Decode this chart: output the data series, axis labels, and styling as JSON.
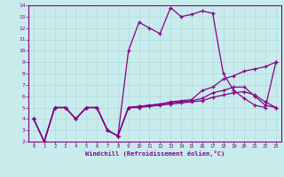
{
  "xlabel": "Windchill (Refroidissement éolien,°C)",
  "bg_color": "#c8ecec",
  "grid_color": "#b0d8d8",
  "line_color": "#880088",
  "xlim": [
    -0.5,
    23.5
  ],
  "ylim": [
    2,
    14
  ],
  "xticks": [
    0,
    1,
    2,
    3,
    4,
    5,
    6,
    7,
    8,
    9,
    10,
    11,
    12,
    13,
    14,
    15,
    16,
    17,
    18,
    19,
    20,
    21,
    22,
    23
  ],
  "yticks": [
    2,
    3,
    4,
    5,
    6,
    7,
    8,
    9,
    10,
    11,
    12,
    13,
    14
  ],
  "line1_x": [
    0,
    1,
    2,
    3,
    4,
    5,
    6,
    7,
    8,
    9,
    10,
    11,
    12,
    13,
    14,
    15,
    16,
    17,
    18,
    19,
    20,
    21,
    22,
    23
  ],
  "line1_y": [
    4.0,
    2.0,
    5.0,
    5.0,
    4.0,
    5.0,
    5.0,
    3.0,
    2.5,
    10.0,
    12.5,
    12.0,
    11.5,
    13.8,
    13.0,
    13.2,
    13.5,
    13.3,
    8.0,
    6.5,
    5.8,
    5.2,
    5.0,
    9.0
  ],
  "line2_x": [
    0,
    1,
    2,
    3,
    4,
    5,
    6,
    7,
    8,
    9,
    10,
    11,
    12,
    13,
    14,
    15,
    16,
    17,
    18,
    19,
    20,
    21,
    22,
    23
  ],
  "line2_y": [
    4.0,
    2.0,
    5.0,
    5.0,
    4.0,
    5.0,
    5.0,
    3.0,
    2.5,
    5.0,
    5.1,
    5.2,
    5.3,
    5.5,
    5.6,
    5.7,
    6.5,
    6.8,
    7.5,
    7.8,
    8.2,
    8.4,
    8.6,
    9.0
  ],
  "line3_x": [
    0,
    1,
    2,
    3,
    4,
    5,
    6,
    7,
    8,
    9,
    10,
    11,
    12,
    13,
    14,
    15,
    16,
    17,
    18,
    19,
    20,
    21,
    22,
    23
  ],
  "line3_y": [
    4.0,
    2.0,
    5.0,
    5.0,
    4.0,
    5.0,
    5.0,
    3.0,
    2.5,
    5.0,
    5.1,
    5.2,
    5.3,
    5.4,
    5.5,
    5.6,
    5.8,
    6.3,
    6.5,
    6.8,
    6.8,
    6.0,
    5.2,
    5.0
  ],
  "line4_x": [
    0,
    1,
    2,
    3,
    4,
    5,
    6,
    7,
    8,
    9,
    10,
    11,
    12,
    13,
    14,
    15,
    16,
    17,
    18,
    19,
    20,
    21,
    22,
    23
  ],
  "line4_y": [
    4.0,
    2.0,
    5.0,
    5.0,
    4.0,
    5.0,
    5.0,
    3.0,
    2.5,
    5.0,
    5.0,
    5.1,
    5.2,
    5.3,
    5.4,
    5.5,
    5.6,
    5.9,
    6.1,
    6.3,
    6.4,
    6.1,
    5.5,
    5.0
  ]
}
